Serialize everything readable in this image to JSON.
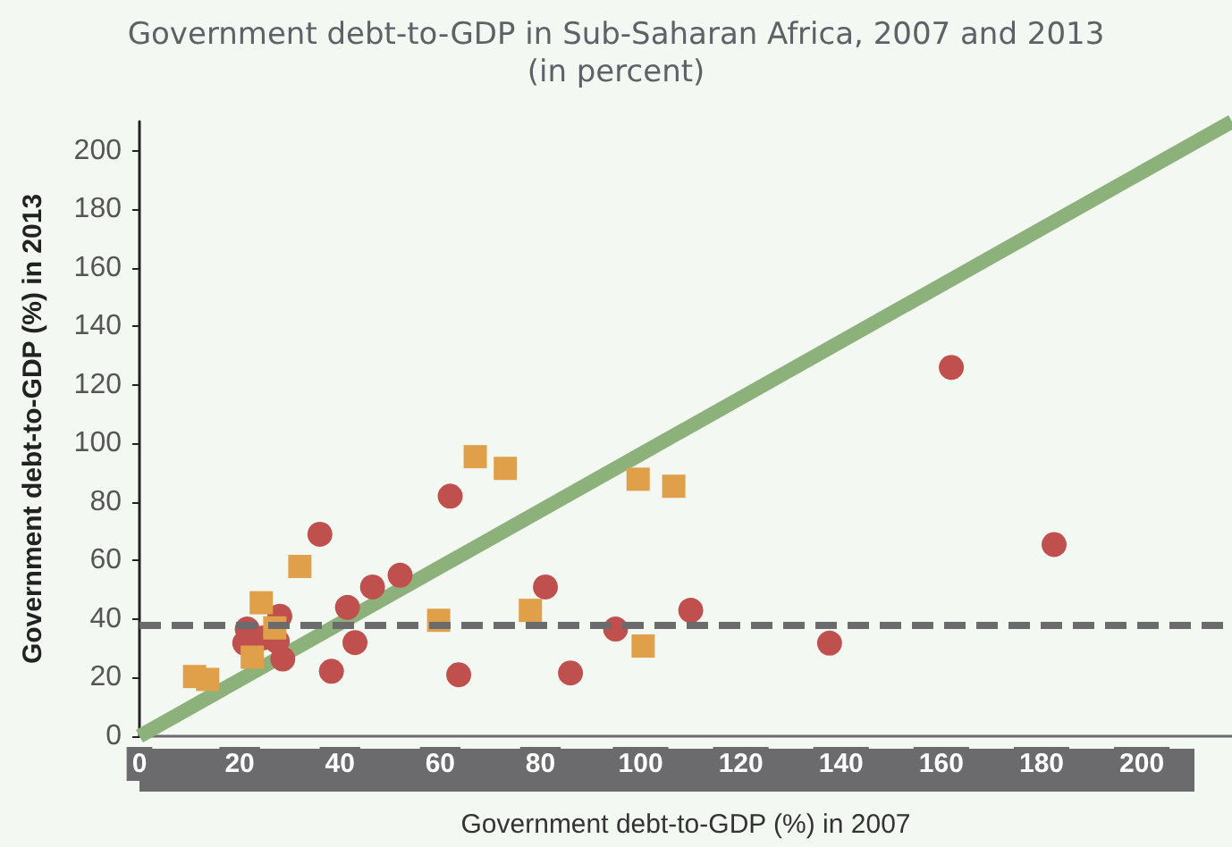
{
  "chart_data": {
    "type": "scatter",
    "title": "Government debt-to-GDP in Sub-Saharan Africa, 2007 and 2013",
    "subtitle": "(in percent)",
    "xlabel": "Government debt-to-GDP (%) in 2007",
    "ylabel": "Government debt-to-GDP (%) in 2013",
    "xlim": [
      0,
      218
    ],
    "ylim": [
      0,
      210
    ],
    "xticks": [
      0,
      20,
      40,
      60,
      80,
      100,
      120,
      140,
      160,
      180,
      200
    ],
    "yticks": [
      0,
      20,
      40,
      60,
      80,
      100,
      120,
      140,
      160,
      180,
      200
    ],
    "grid": false,
    "series": [
      {
        "type": "line",
        "color": "#8db17a",
        "marker": "none",
        "x": [
          0,
          218
        ],
        "values": [
          0,
          210
        ]
      },
      {
        "color": "#c0504d",
        "marker": "circle",
        "x": [
          62,
          36,
          52,
          46.5,
          41.5,
          28,
          21.5,
          24.7,
          27.5,
          21,
          28.6,
          43,
          38.3,
          63.7,
          81,
          86,
          95,
          110,
          162,
          182.5,
          137.7
        ],
        "values": [
          82,
          69,
          55,
          51,
          44,
          41,
          36.6,
          33.6,
          32.4,
          31.8,
          26.4,
          32,
          22.2,
          21,
          51,
          21.6,
          36.6,
          43,
          126,
          65.5,
          31.8
        ]
      },
      {
        "color": "#e0a04a",
        "marker": "square",
        "x": [
          67,
          32,
          24.3,
          59.7,
          27,
          22.5,
          11,
          13.6,
          73,
          99.5,
          106.6,
          78,
          100.5
        ],
        "values": [
          95.5,
          58,
          45.6,
          39.6,
          37,
          27,
          20.4,
          19.4,
          91.5,
          87.8,
          85.4,
          43,
          30.8
        ]
      }
    ],
    "ref_lines": [
      {
        "axis": "y",
        "value": 38,
        "color": "#6b6b6d",
        "line_style": "dashed"
      }
    ]
  }
}
